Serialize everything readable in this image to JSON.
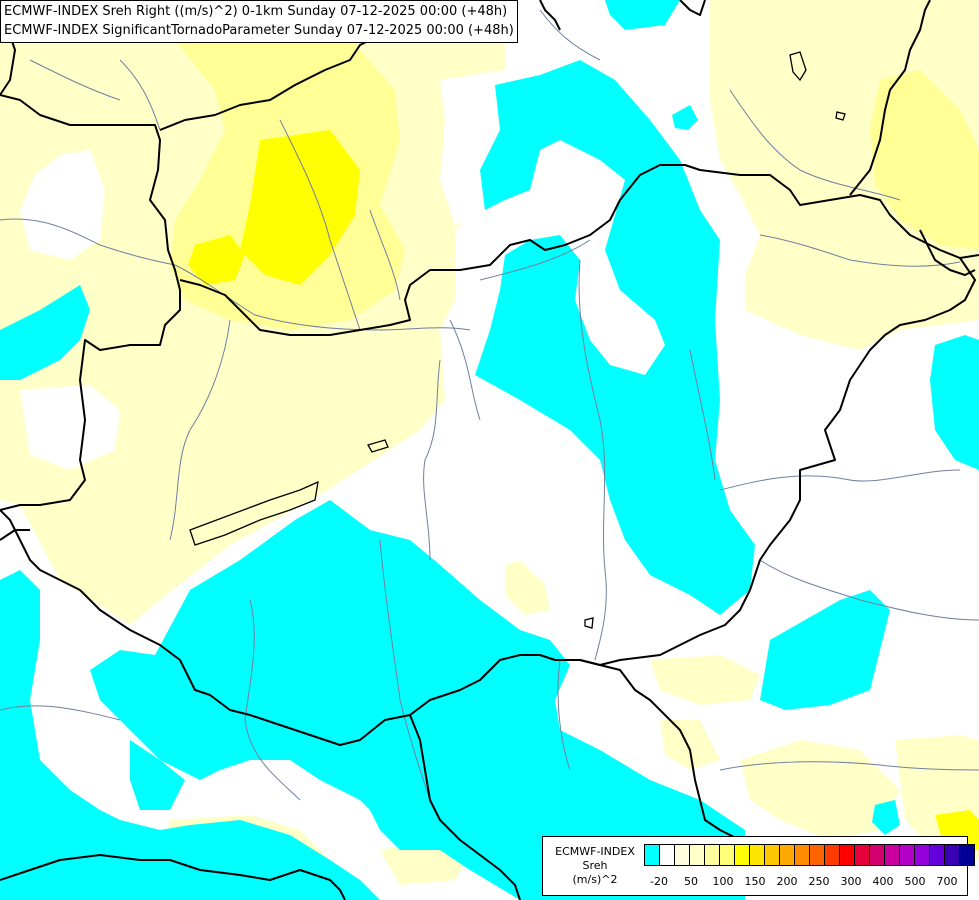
{
  "titles": {
    "line1": "ECMWF-INDEX Sreh Right ((m/s)^2) 0-1km Sunday 07-12-2025 00:00 (+48h)",
    "line2": "ECMWF-INDEX SignificantTornadoParameter Sunday 07-12-2025 00:00 (+48h)"
  },
  "legend": {
    "title_lines": [
      "ECMWF-INDEX",
      "Sreh",
      "(m/s)^2"
    ],
    "swatch_colors": [
      "#00ffff",
      "#ffffff",
      "#ffffe0",
      "#ffffc8",
      "#ffffa0",
      "#ffff78",
      "#ffff00",
      "#ffe600",
      "#ffc800",
      "#ffaa00",
      "#ff8c00",
      "#ff6400",
      "#ff3c00",
      "#ff0000",
      "#e6003c",
      "#d2006e",
      "#c800a0",
      "#b400c8",
      "#9600dc",
      "#6400dc",
      "#3c00b4",
      "#000096"
    ],
    "tick_labels": [
      "-20",
      "50",
      "100",
      "150",
      "200",
      "250",
      "300",
      "400",
      "500",
      "700"
    ]
  },
  "map": {
    "field_colors": {
      "background": "#ffffff",
      "low": "#00ffff",
      "light_yellow": "#ffffc8",
      "yellow": "#ffff96",
      "bright_yellow": "#ffff00"
    },
    "border_color": "#000000",
    "river_color": "#6f7f9f"
  }
}
